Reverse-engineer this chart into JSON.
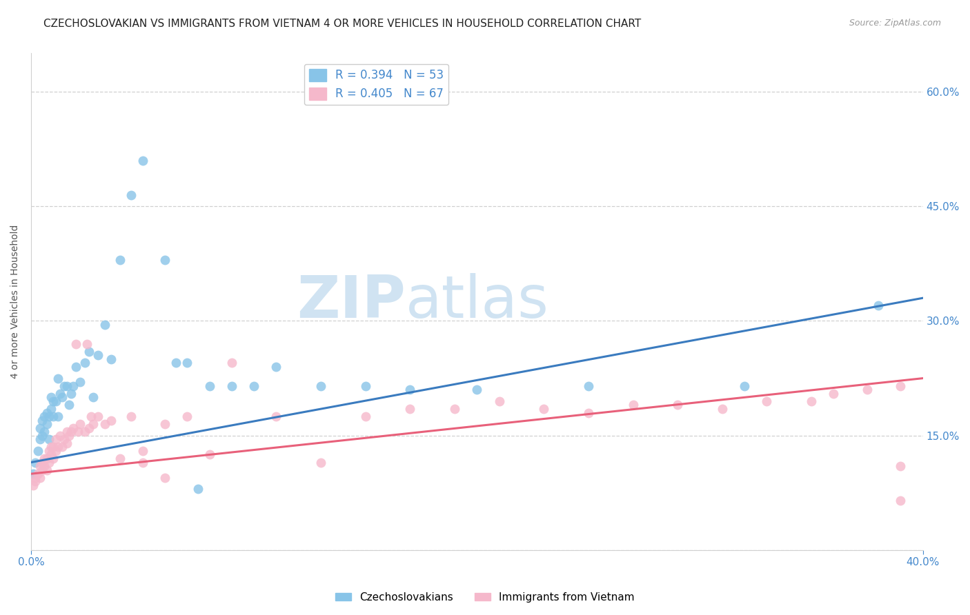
{
  "title": "CZECHOSLOVAKIAN VS IMMIGRANTS FROM VIETNAM 4 OR MORE VEHICLES IN HOUSEHOLD CORRELATION CHART",
  "source": "Source: ZipAtlas.com",
  "ylabel": "4 or more Vehicles in Household",
  "xmin": 0.0,
  "xmax": 0.4,
  "ymin": 0.0,
  "ymax": 0.65,
  "yticks": [
    0.0,
    0.15,
    0.3,
    0.45,
    0.6
  ],
  "ytick_labels": [
    "",
    "15.0%",
    "30.0%",
    "45.0%",
    "60.0%"
  ],
  "background_color": "#ffffff",
  "blue_color": "#88c4e8",
  "pink_color": "#f5b8cb",
  "blue_line_color": "#3a7bbf",
  "pink_line_color": "#e8607a",
  "legend_blue_label": "R = 0.394   N = 53",
  "legend_pink_label": "R = 0.405   N = 67",
  "legend_label_blue": "Czechoslovakians",
  "legend_label_pink": "Immigrants from Vietnam",
  "blue_scatter_x": [
    0.001,
    0.002,
    0.003,
    0.004,
    0.004,
    0.005,
    0.005,
    0.006,
    0.006,
    0.007,
    0.007,
    0.008,
    0.008,
    0.009,
    0.009,
    0.01,
    0.01,
    0.011,
    0.012,
    0.012,
    0.013,
    0.014,
    0.015,
    0.016,
    0.017,
    0.018,
    0.019,
    0.02,
    0.022,
    0.024,
    0.026,
    0.028,
    0.03,
    0.033,
    0.036,
    0.04,
    0.045,
    0.05,
    0.06,
    0.065,
    0.07,
    0.075,
    0.08,
    0.09,
    0.1,
    0.11,
    0.13,
    0.15,
    0.17,
    0.2,
    0.25,
    0.32,
    0.38
  ],
  "blue_scatter_y": [
    0.1,
    0.115,
    0.13,
    0.145,
    0.16,
    0.15,
    0.17,
    0.155,
    0.175,
    0.165,
    0.18,
    0.145,
    0.175,
    0.185,
    0.2,
    0.175,
    0.195,
    0.195,
    0.175,
    0.225,
    0.205,
    0.2,
    0.215,
    0.215,
    0.19,
    0.205,
    0.215,
    0.24,
    0.22,
    0.245,
    0.26,
    0.2,
    0.255,
    0.295,
    0.25,
    0.38,
    0.465,
    0.51,
    0.38,
    0.245,
    0.245,
    0.08,
    0.215,
    0.215,
    0.215,
    0.24,
    0.215,
    0.215,
    0.21,
    0.21,
    0.215,
    0.215,
    0.32
  ],
  "pink_scatter_x": [
    0.001,
    0.002,
    0.002,
    0.003,
    0.004,
    0.004,
    0.005,
    0.005,
    0.006,
    0.006,
    0.007,
    0.007,
    0.008,
    0.008,
    0.009,
    0.009,
    0.01,
    0.01,
    0.011,
    0.011,
    0.012,
    0.013,
    0.014,
    0.015,
    0.016,
    0.016,
    0.017,
    0.018,
    0.019,
    0.02,
    0.021,
    0.022,
    0.024,
    0.025,
    0.026,
    0.027,
    0.028,
    0.03,
    0.033,
    0.036,
    0.04,
    0.045,
    0.05,
    0.06,
    0.07,
    0.08,
    0.09,
    0.11,
    0.13,
    0.15,
    0.17,
    0.19,
    0.21,
    0.23,
    0.25,
    0.27,
    0.29,
    0.31,
    0.33,
    0.35,
    0.36,
    0.375,
    0.39,
    0.39,
    0.39,
    0.05,
    0.06
  ],
  "pink_scatter_y": [
    0.085,
    0.09,
    0.095,
    0.1,
    0.095,
    0.11,
    0.105,
    0.115,
    0.11,
    0.12,
    0.105,
    0.12,
    0.115,
    0.13,
    0.125,
    0.135,
    0.12,
    0.135,
    0.13,
    0.145,
    0.135,
    0.15,
    0.135,
    0.145,
    0.14,
    0.155,
    0.15,
    0.155,
    0.16,
    0.27,
    0.155,
    0.165,
    0.155,
    0.27,
    0.16,
    0.175,
    0.165,
    0.175,
    0.165,
    0.17,
    0.12,
    0.175,
    0.13,
    0.165,
    0.175,
    0.125,
    0.245,
    0.175,
    0.115,
    0.175,
    0.185,
    0.185,
    0.195,
    0.185,
    0.18,
    0.19,
    0.19,
    0.185,
    0.195,
    0.195,
    0.205,
    0.21,
    0.215,
    0.065,
    0.11,
    0.115,
    0.095
  ],
  "blue_line_x": [
    0.0,
    0.4
  ],
  "blue_line_y": [
    0.115,
    0.33
  ],
  "pink_line_x": [
    0.0,
    0.4
  ],
  "pink_line_y": [
    0.1,
    0.225
  ],
  "grid_color": "#d0d0d0",
  "axis_color": "#4488cc",
  "title_fontsize": 11,
  "source_fontsize": 9,
  "axis_label_fontsize": 10,
  "tick_fontsize": 11
}
